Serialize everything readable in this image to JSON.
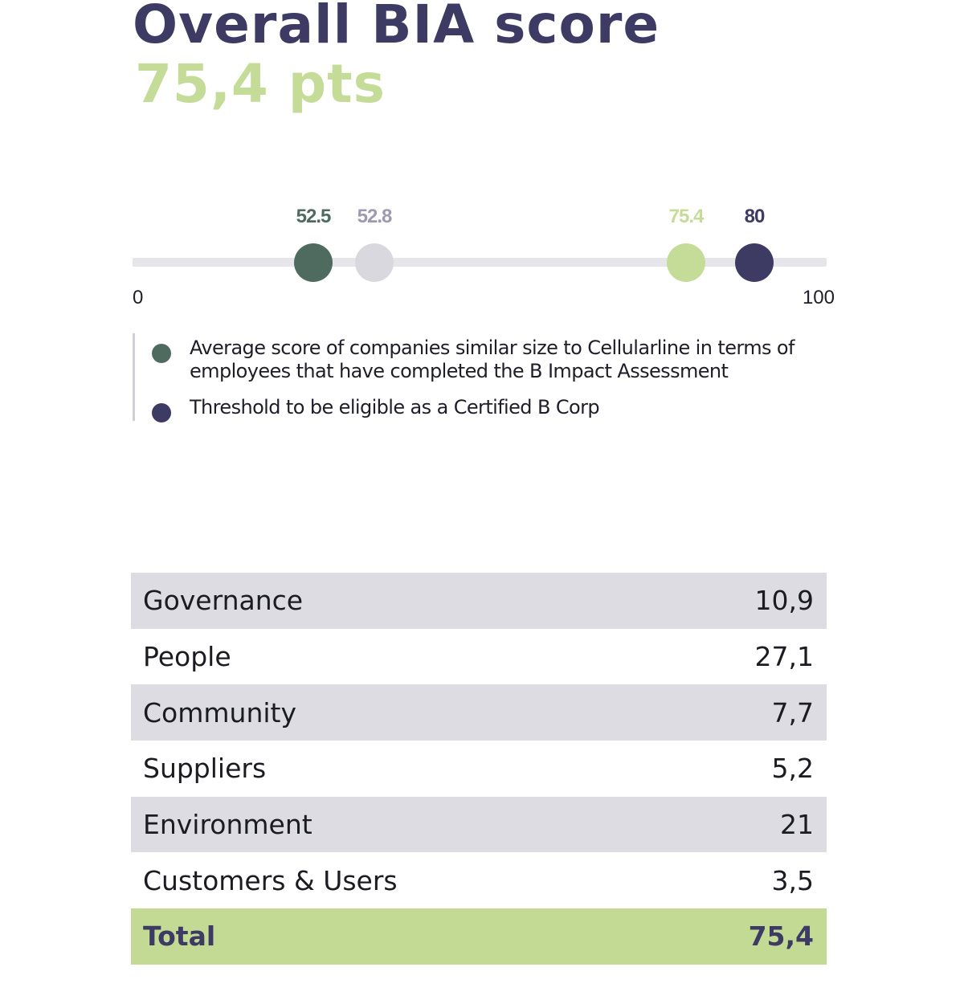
{
  "header": {
    "title": "Overall BIA score",
    "score": "75,4 pts"
  },
  "colors": {
    "title": "#3d3b63",
    "score": "#c4dc98",
    "track": "#e6e6ea",
    "row_shaded": "#dcdce2",
    "row_total": "#c2da94"
  },
  "chart_data": {
    "type": "scatter",
    "axis": {
      "min": 0,
      "max": 100,
      "min_label": "0",
      "max_label": "100"
    },
    "markers": [
      {
        "value": 52.5,
        "label": "52.5",
        "color": "#4f6b60"
      },
      {
        "value": 52.8,
        "label": "52.8",
        "color": "#d8d8de",
        "label_color": "#9c9ab3"
      },
      {
        "value": 75.4,
        "label": "75.4",
        "color": "#c4dc98"
      },
      {
        "value": 80,
        "label": "80",
        "color": "#3d3b63"
      }
    ]
  },
  "legend": {
    "items": [
      {
        "color": "#4f6b60",
        "text": "Average score of companies similar size to Cellularline in terms of employees that have completed the B Impact Assessment"
      },
      {
        "color": "#3d3b63",
        "text": "Threshold to be eligible as a Certified B Corp"
      }
    ]
  },
  "table": {
    "rows": [
      {
        "label": "Governance",
        "value": "10,9"
      },
      {
        "label": "People",
        "value": "27,1"
      },
      {
        "label": "Community",
        "value": "7,7"
      },
      {
        "label": "Suppliers",
        "value": "5,2"
      },
      {
        "label": "Environment",
        "value": "21"
      },
      {
        "label": "Customers & Users",
        "value": "3,5"
      }
    ],
    "total": {
      "label": "Total",
      "value": "75,4"
    }
  }
}
